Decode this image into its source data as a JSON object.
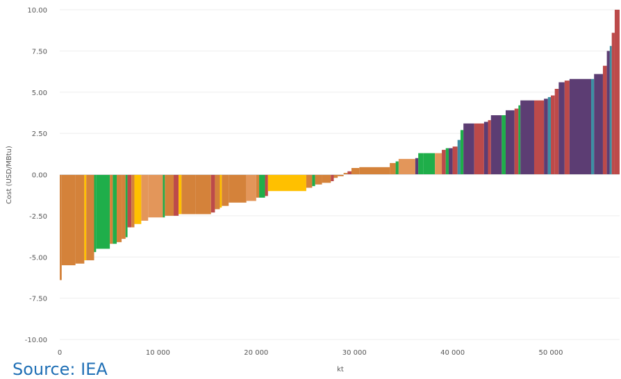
{
  "source_note": "Source: IEA",
  "colors": {
    "orange": "#d4823a",
    "light_orange": "#e3965a",
    "green": "#1fae4a",
    "yellow": "#ffc000",
    "red": "#bc4a4a",
    "purple": "#5c3d73",
    "teal": "#3d8fa3",
    "grid": "#eeeeee",
    "tick_text": "#555555"
  },
  "chart_data": {
    "type": "bar",
    "subtype": "marginal-abatement-cost-curve",
    "title": "",
    "xlabel": "kt",
    "ylabel": "Cost (USD/MBtu)",
    "xlim": [
      0,
      57000
    ],
    "ylim": [
      -10,
      10
    ],
    "x_ticks": [
      "0",
      "10 000",
      "20 000",
      "30 000",
      "40 000",
      "50 000"
    ],
    "y_ticks": [
      "10.00",
      "7.50",
      "5.00",
      "2.50",
      "0.00",
      "-2.50",
      "-5.00",
      "-7.50",
      "-10.00"
    ],
    "grid": true,
    "legend": "none",
    "bars": [
      {
        "x0": 0,
        "x1": 200,
        "y": -6.4,
        "color": "orange"
      },
      {
        "x0": 200,
        "x1": 1600,
        "y": -5.5,
        "color": "orange"
      },
      {
        "x0": 1600,
        "x1": 2500,
        "y": -5.4,
        "color": "orange"
      },
      {
        "x0": 2500,
        "x1": 2700,
        "y": -5.2,
        "color": "yellow"
      },
      {
        "x0": 2700,
        "x1": 3500,
        "y": -5.2,
        "color": "orange"
      },
      {
        "x0": 3500,
        "x1": 3700,
        "y": -4.7,
        "color": "green"
      },
      {
        "x0": 3700,
        "x1": 5100,
        "y": -4.5,
        "color": "green"
      },
      {
        "x0": 5100,
        "x1": 5400,
        "y": -4.2,
        "color": "orange"
      },
      {
        "x0": 5400,
        "x1": 5800,
        "y": -4.2,
        "color": "green"
      },
      {
        "x0": 5800,
        "x1": 6300,
        "y": -4.1,
        "color": "orange"
      },
      {
        "x0": 6300,
        "x1": 6700,
        "y": -3.9,
        "color": "orange"
      },
      {
        "x0": 6700,
        "x1": 6900,
        "y": -3.8,
        "color": "green"
      },
      {
        "x0": 6900,
        "x1": 7300,
        "y": -3.2,
        "color": "red"
      },
      {
        "x0": 7300,
        "x1": 7600,
        "y": -3.2,
        "color": "orange"
      },
      {
        "x0": 7600,
        "x1": 8300,
        "y": -3.0,
        "color": "yellow"
      },
      {
        "x0": 8300,
        "x1": 9000,
        "y": -2.8,
        "color": "light_orange"
      },
      {
        "x0": 9000,
        "x1": 10500,
        "y": -2.6,
        "color": "light_orange"
      },
      {
        "x0": 10500,
        "x1": 10700,
        "y": -2.6,
        "color": "green"
      },
      {
        "x0": 10700,
        "x1": 11600,
        "y": -2.5,
        "color": "orange"
      },
      {
        "x0": 11600,
        "x1": 12100,
        "y": -2.5,
        "color": "red"
      },
      {
        "x0": 12100,
        "x1": 12400,
        "y": -2.4,
        "color": "yellow"
      },
      {
        "x0": 12400,
        "x1": 13800,
        "y": -2.4,
        "color": "orange"
      },
      {
        "x0": 13800,
        "x1": 15400,
        "y": -2.4,
        "color": "orange"
      },
      {
        "x0": 15400,
        "x1": 15800,
        "y": -2.3,
        "color": "red"
      },
      {
        "x0": 15800,
        "x1": 16300,
        "y": -2.1,
        "color": "orange"
      },
      {
        "x0": 16300,
        "x1": 16500,
        "y": -2.0,
        "color": "yellow"
      },
      {
        "x0": 16500,
        "x1": 17200,
        "y": -1.9,
        "color": "orange"
      },
      {
        "x0": 17200,
        "x1": 19000,
        "y": -1.7,
        "color": "orange"
      },
      {
        "x0": 19000,
        "x1": 20000,
        "y": -1.6,
        "color": "light_orange"
      },
      {
        "x0": 20000,
        "x1": 20300,
        "y": -1.4,
        "color": "orange"
      },
      {
        "x0": 20300,
        "x1": 20900,
        "y": -1.4,
        "color": "green"
      },
      {
        "x0": 20900,
        "x1": 21200,
        "y": -1.3,
        "color": "red"
      },
      {
        "x0": 21200,
        "x1": 25100,
        "y": -1.0,
        "color": "yellow"
      },
      {
        "x0": 25100,
        "x1": 25700,
        "y": -0.8,
        "color": "orange"
      },
      {
        "x0": 25700,
        "x1": 26000,
        "y": -0.7,
        "color": "green"
      },
      {
        "x0": 26000,
        "x1": 26700,
        "y": -0.6,
        "color": "orange"
      },
      {
        "x0": 26700,
        "x1": 27600,
        "y": -0.5,
        "color": "orange"
      },
      {
        "x0": 27600,
        "x1": 27900,
        "y": -0.4,
        "color": "red"
      },
      {
        "x0": 27900,
        "x1": 28300,
        "y": -0.2,
        "color": "orange"
      },
      {
        "x0": 28300,
        "x1": 28900,
        "y": -0.1,
        "color": "orange"
      },
      {
        "x0": 28900,
        "x1": 29300,
        "y": 0.1,
        "color": "orange"
      },
      {
        "x0": 29300,
        "x1": 29700,
        "y": 0.2,
        "color": "red"
      },
      {
        "x0": 29700,
        "x1": 30500,
        "y": 0.4,
        "color": "orange"
      },
      {
        "x0": 30500,
        "x1": 33600,
        "y": 0.45,
        "color": "orange"
      },
      {
        "x0": 33600,
        "x1": 34200,
        "y": 0.7,
        "color": "orange"
      },
      {
        "x0": 34200,
        "x1": 34500,
        "y": 0.8,
        "color": "green"
      },
      {
        "x0": 34500,
        "x1": 36200,
        "y": 0.95,
        "color": "light_orange"
      },
      {
        "x0": 36200,
        "x1": 36500,
        "y": 1.0,
        "color": "purple"
      },
      {
        "x0": 36500,
        "x1": 37000,
        "y": 1.3,
        "color": "green"
      },
      {
        "x0": 37000,
        "x1": 38200,
        "y": 1.3,
        "color": "green"
      },
      {
        "x0": 38200,
        "x1": 38900,
        "y": 1.3,
        "color": "light_orange"
      },
      {
        "x0": 38900,
        "x1": 39300,
        "y": 1.5,
        "color": "red"
      },
      {
        "x0": 39300,
        "x1": 39600,
        "y": 1.6,
        "color": "green"
      },
      {
        "x0": 39600,
        "x1": 40000,
        "y": 1.6,
        "color": "purple"
      },
      {
        "x0": 40000,
        "x1": 40500,
        "y": 1.7,
        "color": "red"
      },
      {
        "x0": 40500,
        "x1": 40800,
        "y": 2.1,
        "color": "teal"
      },
      {
        "x0": 40800,
        "x1": 41100,
        "y": 2.7,
        "color": "green"
      },
      {
        "x0": 41100,
        "x1": 42200,
        "y": 3.1,
        "color": "purple"
      },
      {
        "x0": 42200,
        "x1": 43200,
        "y": 3.1,
        "color": "red"
      },
      {
        "x0": 43200,
        "x1": 43600,
        "y": 3.2,
        "color": "purple"
      },
      {
        "x0": 43600,
        "x1": 43900,
        "y": 3.3,
        "color": "red"
      },
      {
        "x0": 43900,
        "x1": 45000,
        "y": 3.6,
        "color": "purple"
      },
      {
        "x0": 45000,
        "x1": 45400,
        "y": 3.6,
        "color": "green"
      },
      {
        "x0": 45400,
        "x1": 46300,
        "y": 3.9,
        "color": "purple"
      },
      {
        "x0": 46300,
        "x1": 46700,
        "y": 4.0,
        "color": "red"
      },
      {
        "x0": 46700,
        "x1": 46900,
        "y": 4.2,
        "color": "green"
      },
      {
        "x0": 46900,
        "x1": 48300,
        "y": 4.5,
        "color": "purple"
      },
      {
        "x0": 48300,
        "x1": 49300,
        "y": 4.5,
        "color": "red"
      },
      {
        "x0": 49300,
        "x1": 49700,
        "y": 4.6,
        "color": "purple"
      },
      {
        "x0": 49700,
        "x1": 50000,
        "y": 4.7,
        "color": "teal"
      },
      {
        "x0": 50000,
        "x1": 50400,
        "y": 4.8,
        "color": "red"
      },
      {
        "x0": 50400,
        "x1": 50800,
        "y": 5.2,
        "color": "red"
      },
      {
        "x0": 50800,
        "x1": 51400,
        "y": 5.6,
        "color": "purple"
      },
      {
        "x0": 51400,
        "x1": 51900,
        "y": 5.7,
        "color": "red"
      },
      {
        "x0": 51900,
        "x1": 54100,
        "y": 5.8,
        "color": "purple"
      },
      {
        "x0": 54100,
        "x1": 54400,
        "y": 5.8,
        "color": "teal"
      },
      {
        "x0": 54400,
        "x1": 55300,
        "y": 6.1,
        "color": "purple"
      },
      {
        "x0": 55300,
        "x1": 55700,
        "y": 6.6,
        "color": "red"
      },
      {
        "x0": 55700,
        "x1": 56000,
        "y": 7.5,
        "color": "purple"
      },
      {
        "x0": 56000,
        "x1": 56200,
        "y": 7.8,
        "color": "teal"
      },
      {
        "x0": 56200,
        "x1": 56500,
        "y": 8.6,
        "color": "red"
      },
      {
        "x0": 56500,
        "x1": 57000,
        "y": 10.0,
        "color": "red"
      }
    ]
  }
}
